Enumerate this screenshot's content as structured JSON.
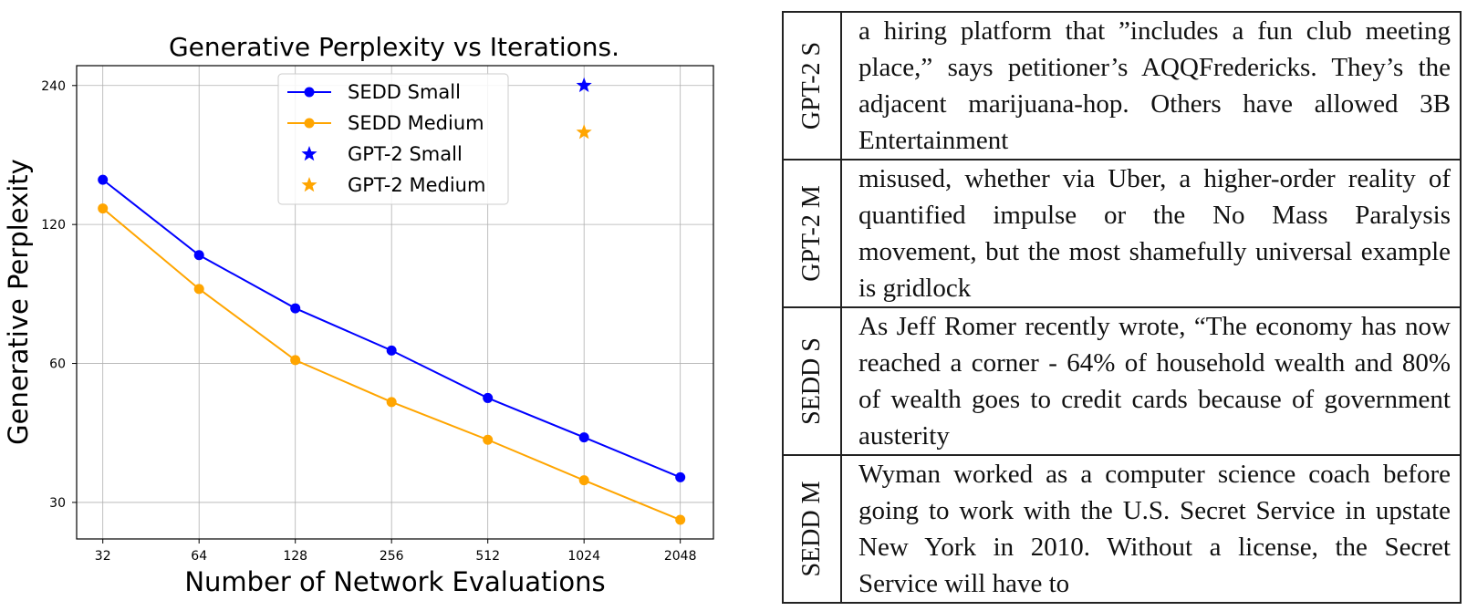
{
  "chart_data": {
    "type": "line",
    "title": "Generative Perplexity vs Iterations.",
    "xlabel": "Number of Network Evaluations",
    "ylabel": "Generative Perplexity",
    "x_scale": "log2",
    "y_scale": "log",
    "x_ticks": [
      32,
      64,
      128,
      256,
      512,
      1024,
      2048
    ],
    "x_tick_labels": [
      "32",
      "64",
      "128",
      "256",
      "512",
      "1024",
      "2048"
    ],
    "y_ticks": [
      30,
      60,
      120,
      240
    ],
    "y_tick_labels": [
      "30",
      "60",
      "120",
      "240"
    ],
    "xlim": [
      26.5,
      2600
    ],
    "ylim": [
      25,
      265
    ],
    "grid": true,
    "legend_position": "top-center",
    "series": [
      {
        "name": "SEDD Small",
        "type": "line",
        "marker": "circle",
        "color": "#0000ff",
        "x": [
          32,
          64,
          128,
          256,
          512,
          1024,
          2048
        ],
        "y": [
          150,
          103,
          79,
          64,
          50.5,
          41.5,
          34
        ]
      },
      {
        "name": "SEDD Medium",
        "type": "line",
        "marker": "circle",
        "color": "#ffa500",
        "x": [
          32,
          64,
          128,
          256,
          512,
          1024,
          2048
        ],
        "y": [
          130,
          87,
          61,
          49.5,
          41,
          33.5,
          27.5
        ]
      },
      {
        "name": "GPT-2 Small",
        "type": "point",
        "marker": "star",
        "color": "#0000ff",
        "x": [
          1024
        ],
        "y": [
          240
        ]
      },
      {
        "name": "GPT-2 Medium",
        "type": "point",
        "marker": "star",
        "color": "#ffa500",
        "x": [
          1024
        ],
        "y": [
          190
        ]
      }
    ]
  },
  "samples_table": {
    "rows": [
      {
        "label": "GPT-2 S",
        "text": "a hiring platform that ”includes a fun club meeting place,” says petitioner’s AQQFredericks. They’s the adjacent marijuana-hop. Others have allowed 3B Entertainment"
      },
      {
        "label": "GPT-2 M",
        "text": "misused, whether via Uber, a higher-order reality of quantified impulse or the No Mass Paralysis movement, but the most shamefully universal example is gridlock"
      },
      {
        "label": "SEDD S",
        "text": "As Jeff Romer recently wrote, “The economy has now reached a corner - 64% of household wealth and 80% of wealth goes to credit cards because of government austerity"
      },
      {
        "label": "SEDD M",
        "text": "Wyman worked as a computer science coach before going to work with the U.S. Secret Service in upstate New York in 2010. Without a license, the Secret Service will have to"
      }
    ]
  }
}
